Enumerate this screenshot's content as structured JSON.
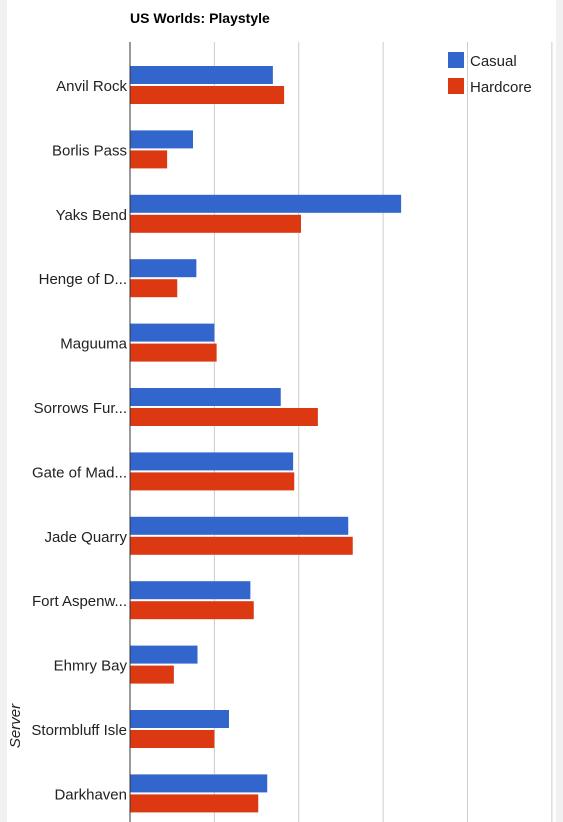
{
  "chart_data": {
    "type": "bar",
    "orientation": "horizontal",
    "title": "US Worlds: Playstyle",
    "ylabel": "Server",
    "xlabel": "",
    "categories": [
      "Anvil Rock",
      "Borlis Pass",
      "Yaks Bend",
      "Henge of D...",
      "Maguuma",
      "Sorrows Fur...",
      "Gate of Mad...",
      "Jade Quarry",
      "Fort Aspenw...",
      "Ehmry Bay",
      "Stormbluff Isle",
      "Darkhaven"
    ],
    "series": [
      {
        "name": "Casual",
        "color": "#3366cc",
        "values": [
          127,
          56,
          241,
          59,
          75,
          134,
          145,
          194,
          107,
          60,
          88,
          122
        ]
      },
      {
        "name": "Hardcore",
        "color": "#dc3912",
        "values": [
          137,
          33,
          152,
          42,
          77,
          167,
          146,
          198,
          110,
          39,
          75,
          114
        ]
      }
    ],
    "xlim": [
      0,
      400
    ],
    "grid": true,
    "gridline_interval": 75,
    "legend_position": "top-right"
  }
}
